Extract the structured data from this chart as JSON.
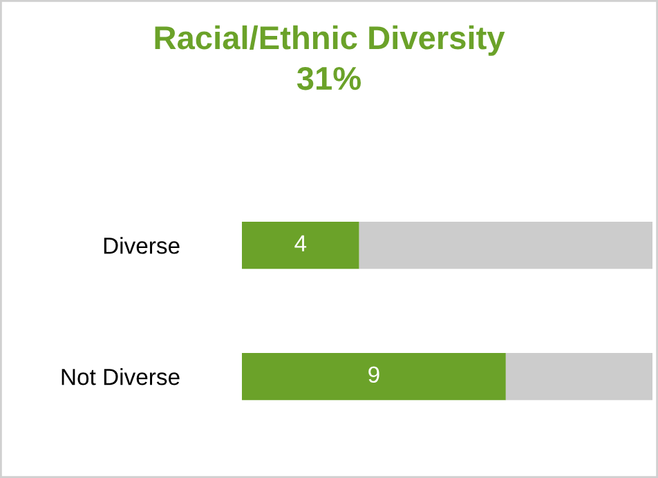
{
  "chart_data": {
    "type": "bar",
    "orientation": "horizontal",
    "stacked": true,
    "title": "Racial/Ethnic Diversity",
    "subtitle": "31%",
    "categories": [
      "Diverse",
      "Not Diverse"
    ],
    "series": [
      {
        "color": "#6ba229",
        "values": [
          4,
          9
        ],
        "value_labels": [
          "4",
          "9"
        ]
      },
      {
        "color": "#cccccc",
        "values": [
          10,
          5
        ]
      }
    ],
    "grid": false,
    "legend": false
  }
}
